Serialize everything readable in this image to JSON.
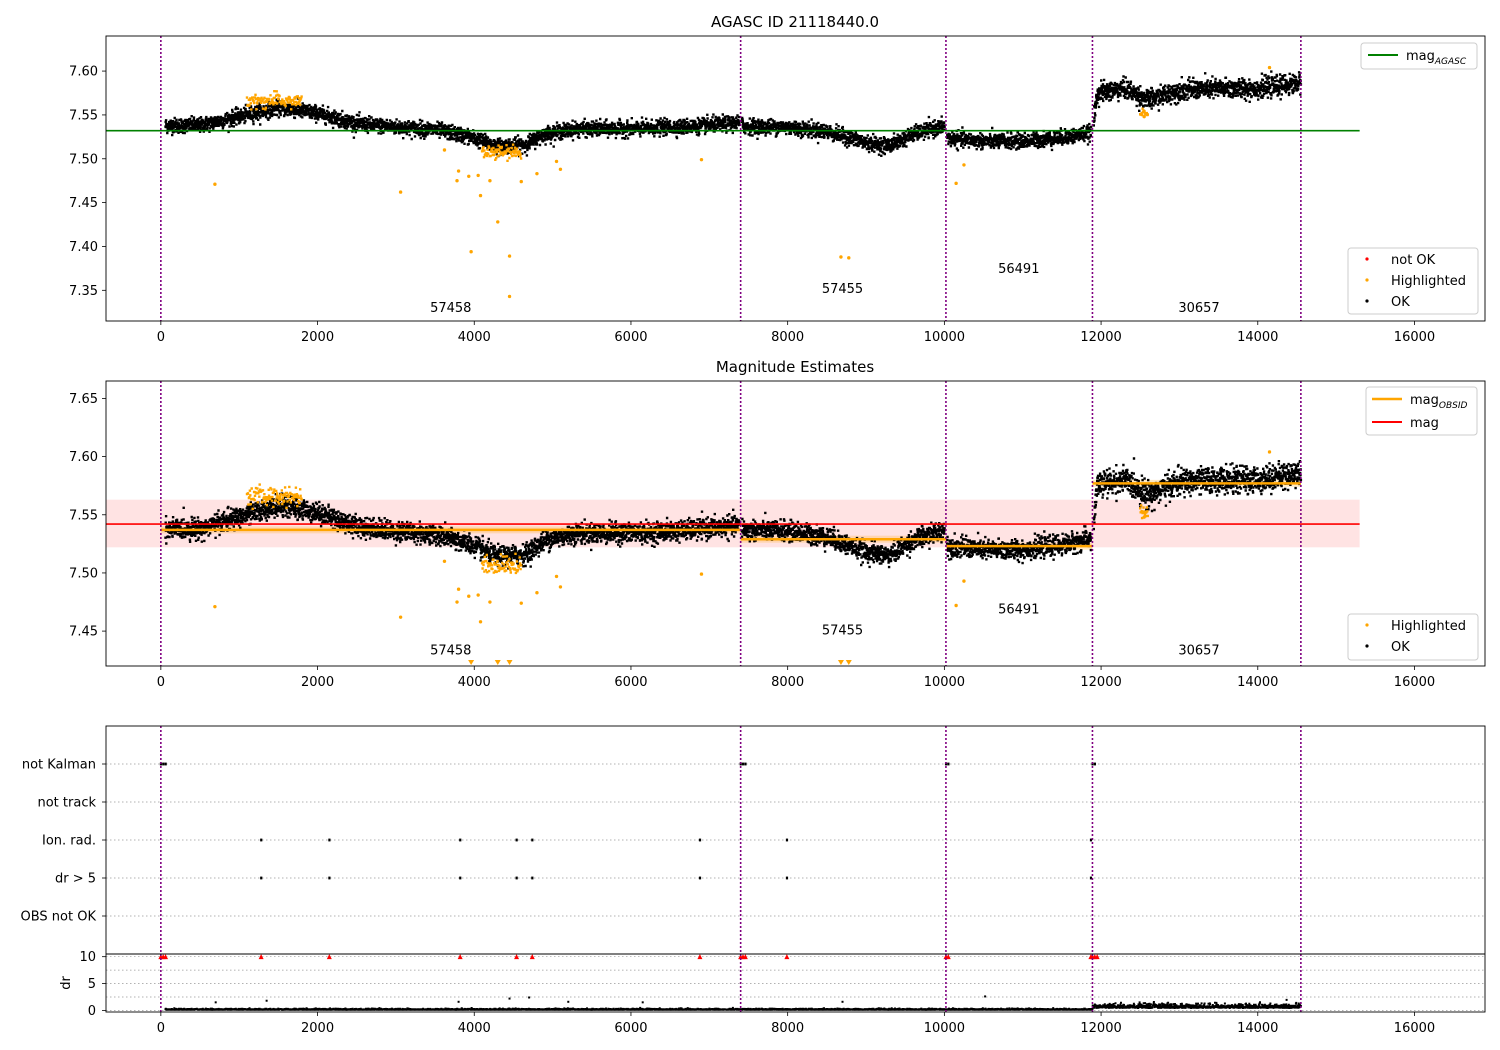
{
  "chart_data": [
    {
      "type": "scatter",
      "title": "AGASC ID 21118440.0",
      "xlim": [
        -700,
        16900
      ],
      "ylim": [
        7.315,
        7.64
      ],
      "x_ticks": [
        0,
        2000,
        4000,
        6000,
        8000,
        10000,
        12000,
        14000,
        16000
      ],
      "x_tick_labels": [
        "0",
        "2000",
        "4000",
        "6000",
        "8000",
        "10000",
        "12000",
        "14000",
        "16000"
      ],
      "y_ticks": [
        7.35,
        7.4,
        7.45,
        7.5,
        7.55,
        7.6
      ],
      "y_tick_labels": [
        "7.35",
        "7.40",
        "7.45",
        "7.50",
        "7.55",
        "7.60"
      ],
      "obs_boundaries": [
        0,
        7400,
        10020,
        11890,
        14550
      ],
      "obsid_labels": [
        {
          "text": "57458",
          "x": 3700,
          "y": 7.325
        },
        {
          "text": "57455",
          "x": 8700,
          "y": 7.347
        },
        {
          "text": "56491",
          "x": 10950,
          "y": 7.37
        },
        {
          "text": "30657",
          "x": 13250,
          "y": 7.325
        }
      ],
      "reference_line": {
        "name": "mag_AGASC",
        "value": 7.532,
        "x_range": [
          -700,
          15300
        ],
        "color": "#008000"
      },
      "trend": [
        [
          50,
          7.538
        ],
        [
          500,
          7.538
        ],
        [
          1000,
          7.548
        ],
        [
          1500,
          7.558
        ],
        [
          2000,
          7.552
        ],
        [
          2500,
          7.54
        ],
        [
          3000,
          7.536
        ],
        [
          3500,
          7.533
        ],
        [
          3900,
          7.526
        ],
        [
          4300,
          7.514
        ],
        [
          4650,
          7.516
        ],
        [
          4900,
          7.528
        ],
        [
          5300,
          7.534
        ],
        [
          6000,
          7.534
        ],
        [
          6800,
          7.537
        ],
        [
          7400,
          7.541
        ],
        [
          7450,
          7.537
        ],
        [
          8000,
          7.536
        ],
        [
          8500,
          7.531
        ],
        [
          9000,
          7.518
        ],
        [
          9300,
          7.515
        ],
        [
          9600,
          7.528
        ],
        [
          10000,
          7.537
        ],
        [
          10050,
          7.523
        ],
        [
          10500,
          7.52
        ],
        [
          11000,
          7.52
        ],
        [
          11500,
          7.524
        ],
        [
          11890,
          7.53
        ],
        [
          11950,
          7.575
        ],
        [
          12300,
          7.58
        ],
        [
          12600,
          7.567
        ],
        [
          13000,
          7.578
        ],
        [
          13500,
          7.58
        ],
        [
          14000,
          7.58
        ],
        [
          14550,
          7.586
        ]
      ],
      "highlighted_points": [
        [
          690,
          7.471
        ],
        [
          3060,
          7.462
        ],
        [
          3620,
          7.51
        ],
        [
          3780,
          7.475
        ],
        [
          3800,
          7.486
        ],
        [
          3930,
          7.48
        ],
        [
          3960,
          7.394
        ],
        [
          4050,
          7.481
        ],
        [
          4080,
          7.458
        ],
        [
          4200,
          7.475
        ],
        [
          4300,
          7.428
        ],
        [
          4450,
          7.389
        ],
        [
          4450,
          7.343
        ],
        [
          4600,
          7.474
        ],
        [
          4800,
          7.483
        ],
        [
          5050,
          7.497
        ],
        [
          5100,
          7.488
        ],
        [
          6900,
          7.499
        ],
        [
          8680,
          7.388
        ],
        [
          8780,
          7.387
        ],
        [
          10150,
          7.472
        ],
        [
          10250,
          7.493
        ],
        [
          12550,
          7.548
        ],
        [
          14150,
          7.604
        ]
      ],
      "legend_top": [
        "mag_AGASC"
      ],
      "legend_bottom": [
        "not OK",
        "Highlighted",
        "OK"
      ]
    },
    {
      "type": "scatter",
      "title": "Magnitude Estimates",
      "xlim": [
        -700,
        16900
      ],
      "ylim": [
        7.42,
        7.665
      ],
      "x_ticks": [
        0,
        2000,
        4000,
        6000,
        8000,
        10000,
        12000,
        14000,
        16000
      ],
      "x_tick_labels": [
        "0",
        "2000",
        "4000",
        "6000",
        "8000",
        "10000",
        "12000",
        "14000",
        "16000"
      ],
      "y_ticks": [
        7.45,
        7.5,
        7.55,
        7.6,
        7.65
      ],
      "y_tick_labels": [
        "7.45",
        "7.50",
        "7.55",
        "7.60",
        "7.65"
      ],
      "obs_boundaries": [
        0,
        7400,
        10020,
        11890,
        14550
      ],
      "obsid_labels": [
        {
          "text": "57458",
          "x": 3700,
          "y": 7.43
        },
        {
          "text": "57455",
          "x": 8700,
          "y": 7.447
        },
        {
          "text": "56491",
          "x": 10950,
          "y": 7.465
        },
        {
          "text": "30657",
          "x": 13250,
          "y": 7.43
        }
      ],
      "mag_line": {
        "name": "mag",
        "value": 7.542,
        "band": [
          7.522,
          7.563
        ],
        "x_range": [
          -700,
          15300
        ],
        "color": "#ff0000"
      },
      "obsid_segments": [
        {
          "x": [
            0,
            7400
          ],
          "value": 7.537
        },
        {
          "x": [
            7400,
            10020
          ],
          "value": 7.529
        },
        {
          "x": [
            10020,
            11890
          ],
          "value": 7.523
        },
        {
          "x": [
            11890,
            14550
          ],
          "value": 7.577
        }
      ],
      "trend_ref": 0,
      "highlighted_points": [
        [
          690,
          7.471
        ],
        [
          3060,
          7.462
        ],
        [
          3620,
          7.51
        ],
        [
          3780,
          7.475
        ],
        [
          3800,
          7.486
        ],
        [
          3930,
          7.48
        ],
        [
          4050,
          7.481
        ],
        [
          4080,
          7.458
        ],
        [
          4200,
          7.475
        ],
        [
          4600,
          7.474
        ],
        [
          4800,
          7.483
        ],
        [
          5050,
          7.497
        ],
        [
          5100,
          7.488
        ],
        [
          6900,
          7.499
        ],
        [
          10150,
          7.472
        ],
        [
          10250,
          7.493
        ],
        [
          12550,
          7.548
        ],
        [
          14150,
          7.604
        ]
      ],
      "out_of_range_markers": [
        3960,
        4300,
        4450,
        8680,
        8780
      ],
      "legend_top": [
        "mag_OBSID",
        "mag"
      ],
      "legend_bottom": [
        "Highlighted",
        "OK"
      ]
    },
    {
      "type": "scatter",
      "title": "",
      "xlim": [
        -700,
        16900
      ],
      "x_ticks": [
        0,
        2000,
        4000,
        6000,
        8000,
        10000,
        12000,
        14000,
        16000
      ],
      "x_tick_labels": [
        "0",
        "2000",
        "4000",
        "6000",
        "8000",
        "10000",
        "12000",
        "14000",
        "16000"
      ],
      "flag_rows": [
        "not Kalman",
        "not track",
        "Ion. rad.",
        "dr > 5",
        "OBS not OK"
      ],
      "obs_boundaries": [
        0,
        7400,
        10020,
        11890,
        14550
      ],
      "flag_points": {
        "not Kalman": [
          0,
          30,
          60,
          7400,
          7430,
          7460,
          10020,
          10050,
          11890,
          11920
        ],
        "not track": [],
        "Ion. rad.": [
          1280,
          2150,
          3820,
          4540,
          4740,
          6880,
          7990,
          11870
        ],
        "dr > 5": [
          1280,
          2150,
          3820,
          4540,
          4740,
          6880,
          7990,
          11870
        ],
        "OBS not OK": []
      },
      "dr_ylabel": "dr",
      "dr_ylim": [
        -0.3,
        10.5
      ],
      "dr_ticks": [
        0,
        5,
        10
      ],
      "dr_tick_labels": [
        "0",
        "5",
        "10"
      ],
      "dr_capped_points": [
        0,
        30,
        60,
        1280,
        2150,
        3820,
        4540,
        4740,
        6880,
        7400,
        7430,
        7460,
        7990,
        10020,
        10050,
        11870,
        11890,
        11920,
        11950
      ],
      "dr_spikes": [
        [
          700,
          1.5
        ],
        [
          1350,
          1.8
        ],
        [
          3800,
          1.6
        ],
        [
          4450,
          2.2
        ],
        [
          4700,
          2.4
        ],
        [
          5200,
          1.6
        ],
        [
          6150,
          1.5
        ],
        [
          8700,
          1.6
        ],
        [
          10520,
          2.6
        ]
      ]
    }
  ]
}
